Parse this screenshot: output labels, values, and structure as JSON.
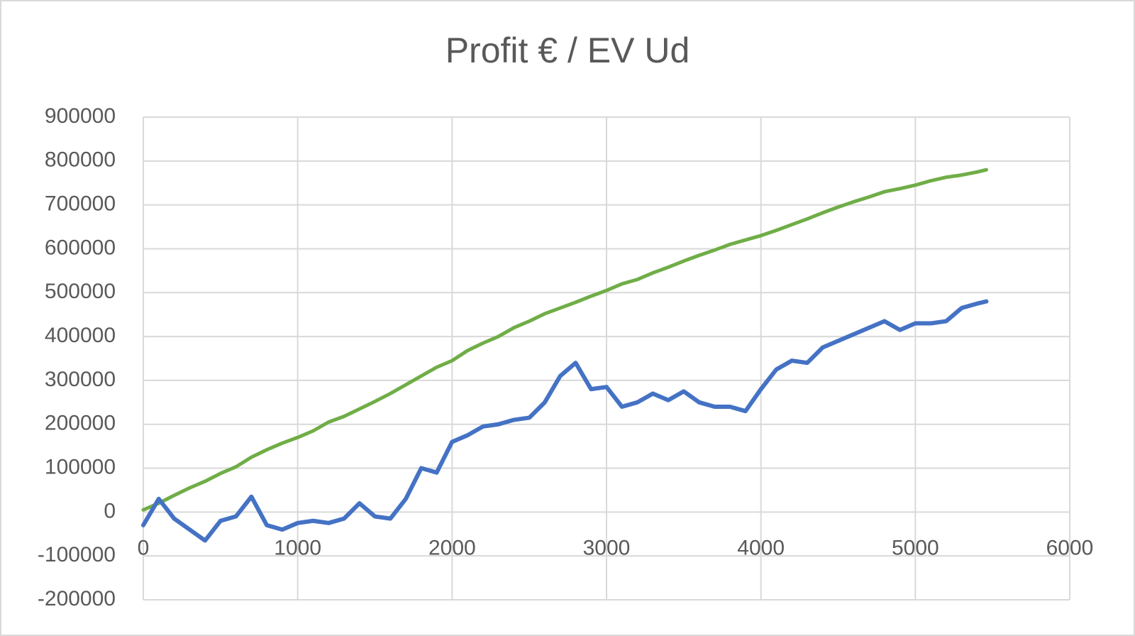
{
  "chart_data": {
    "type": "line",
    "title": "Profit € / EV Ud",
    "x": [
      0,
      100,
      200,
      300,
      400,
      500,
      600,
      700,
      800,
      900,
      1000,
      1100,
      1200,
      1300,
      1400,
      1500,
      1600,
      1700,
      1800,
      1900,
      2000,
      2100,
      2200,
      2300,
      2400,
      2500,
      2600,
      2700,
      2800,
      2900,
      3000,
      3100,
      3200,
      3300,
      3400,
      3500,
      3600,
      3700,
      3800,
      3900,
      4000,
      4100,
      4200,
      4300,
      4400,
      4500,
      4600,
      4700,
      4800,
      4900,
      5000,
      5100,
      5200,
      5300,
      5400,
      5460
    ],
    "series": [
      {
        "color": "#70ad47",
        "values": [
          5000,
          20000,
          38000,
          55000,
          70000,
          88000,
          103000,
          125000,
          142000,
          157000,
          170000,
          185000,
          205000,
          218000,
          235000,
          252000,
          270000,
          290000,
          310000,
          330000,
          345000,
          368000,
          385000,
          400000,
          420000,
          435000,
          452000,
          465000,
          478000,
          492000,
          505000,
          520000,
          530000,
          545000,
          558000,
          572000,
          585000,
          597000,
          610000,
          620000,
          630000,
          642000,
          655000,
          668000,
          682000,
          695000,
          707000,
          718000,
          730000,
          737000,
          745000,
          755000,
          763000,
          768000,
          775000,
          780000
        ]
      },
      {
        "color": "#4472c4",
        "values": [
          -30000,
          30000,
          -15000,
          -40000,
          -65000,
          -20000,
          -10000,
          35000,
          -30000,
          -40000,
          -25000,
          -20000,
          -25000,
          -15000,
          20000,
          -10000,
          -15000,
          30000,
          100000,
          90000,
          160000,
          175000,
          195000,
          200000,
          210000,
          215000,
          250000,
          310000,
          340000,
          280000,
          285000,
          240000,
          250000,
          270000,
          255000,
          275000,
          250000,
          240000,
          240000,
          230000,
          280000,
          325000,
          345000,
          340000,
          375000,
          390000,
          405000,
          420000,
          435000,
          415000,
          430000,
          430000,
          435000,
          465000,
          475000,
          480000
        ]
      }
    ],
    "xlim": [
      0,
      6000
    ],
    "xticks": [
      0,
      1000,
      2000,
      3000,
      4000,
      5000,
      6000
    ],
    "ylim": [
      -200000,
      900000
    ],
    "yticks": [
      -200000,
      -100000,
      0,
      100000,
      200000,
      300000,
      400000,
      500000,
      600000,
      700000,
      800000,
      900000
    ],
    "grid": true
  }
}
